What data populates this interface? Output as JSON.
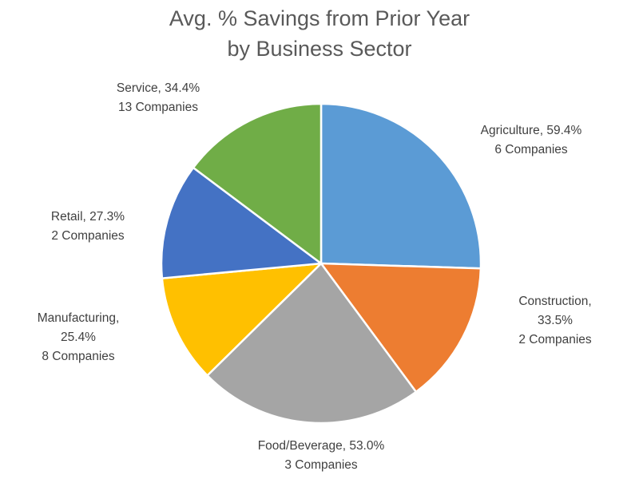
{
  "chart_data": {
    "type": "pie",
    "title": [
      "Avg. % Savings from Prior Year",
      "by Business Sector"
    ],
    "slices": [
      {
        "name": "Agriculture",
        "value": 59.4,
        "value_label": "59.4%",
        "companies": "6 Companies",
        "color": "#5B9BD5"
      },
      {
        "name": "Construction",
        "value": 33.5,
        "value_label": "33.5%",
        "companies": "2 Companies",
        "color": "#ED7D31"
      },
      {
        "name": "Food/Beverage",
        "value": 53.0,
        "value_label": "53.0%",
        "companies": "3 Companies",
        "color": "#A5A5A5"
      },
      {
        "name": "Manufacturing",
        "value": 25.4,
        "value_label": "25.4%",
        "companies": "8 Companies",
        "color": "#FFC000"
      },
      {
        "name": "Retail",
        "value": 27.3,
        "value_label": "27.3%",
        "companies": "2 Companies",
        "color": "#4472C4"
      },
      {
        "name": "Service",
        "value": 34.4,
        "value_label": "34.4%",
        "companies": "13 Companies",
        "color": "#70AD47"
      }
    ],
    "legend": "none",
    "data_labels": "outside"
  }
}
